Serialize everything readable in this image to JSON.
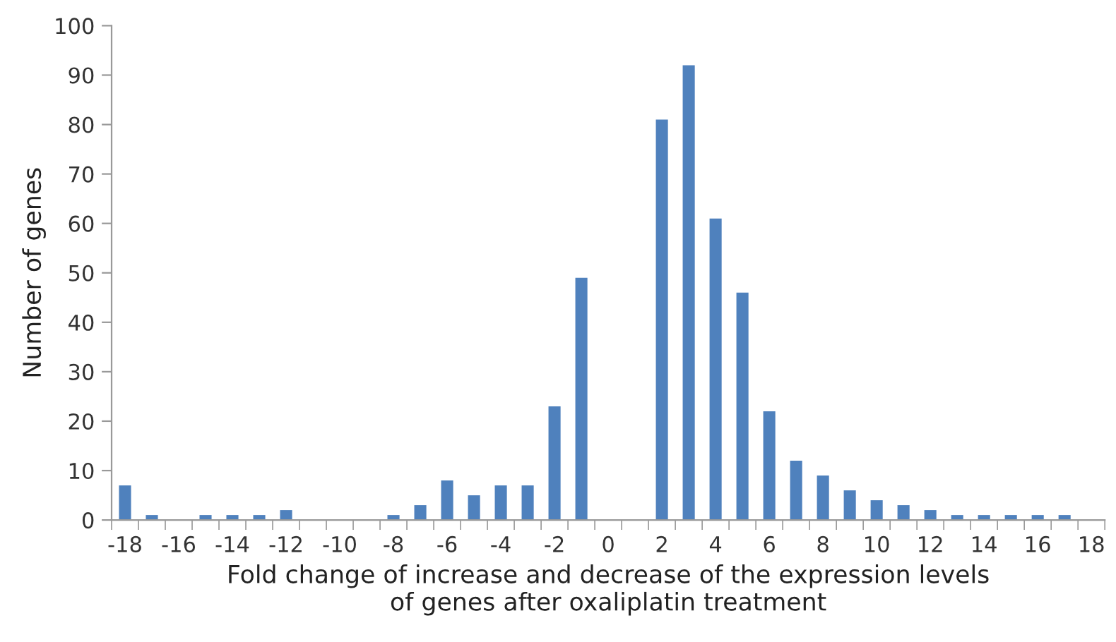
{
  "chart_data": {
    "type": "bar",
    "xlabel": "Fold change of increase and decrease of the expression levels\nof genes after oxaliplatin treatment",
    "ylabel": "Number of genes",
    "categories": [
      "-18",
      null,
      "-16",
      null,
      "-14",
      null,
      "-12",
      null,
      "-10",
      null,
      "-8",
      null,
      "-6",
      null,
      "-4",
      null,
      "-2",
      null,
      "0",
      null,
      "2",
      null,
      "4",
      null,
      "6",
      null,
      "8",
      null,
      "10",
      null,
      "12",
      null,
      "14",
      null,
      "16",
      null,
      "18"
    ],
    "series": [
      {
        "color": "#4f81bd",
        "values": [
          7,
          1,
          0,
          1,
          1,
          1,
          2,
          0,
          0,
          0,
          1,
          3,
          8,
          5,
          7,
          7,
          23,
          49,
          0,
          0,
          81,
          92,
          61,
          46,
          22,
          12,
          9,
          6,
          4,
          3,
          2,
          1,
          1,
          1,
          1,
          1,
          0
        ]
      }
    ],
    "ylim": [
      0,
      100
    ],
    "yticks": [
      0,
      10,
      20,
      30,
      40,
      50,
      60,
      70,
      80,
      90,
      100
    ],
    "grid": false,
    "legend": false
  }
}
